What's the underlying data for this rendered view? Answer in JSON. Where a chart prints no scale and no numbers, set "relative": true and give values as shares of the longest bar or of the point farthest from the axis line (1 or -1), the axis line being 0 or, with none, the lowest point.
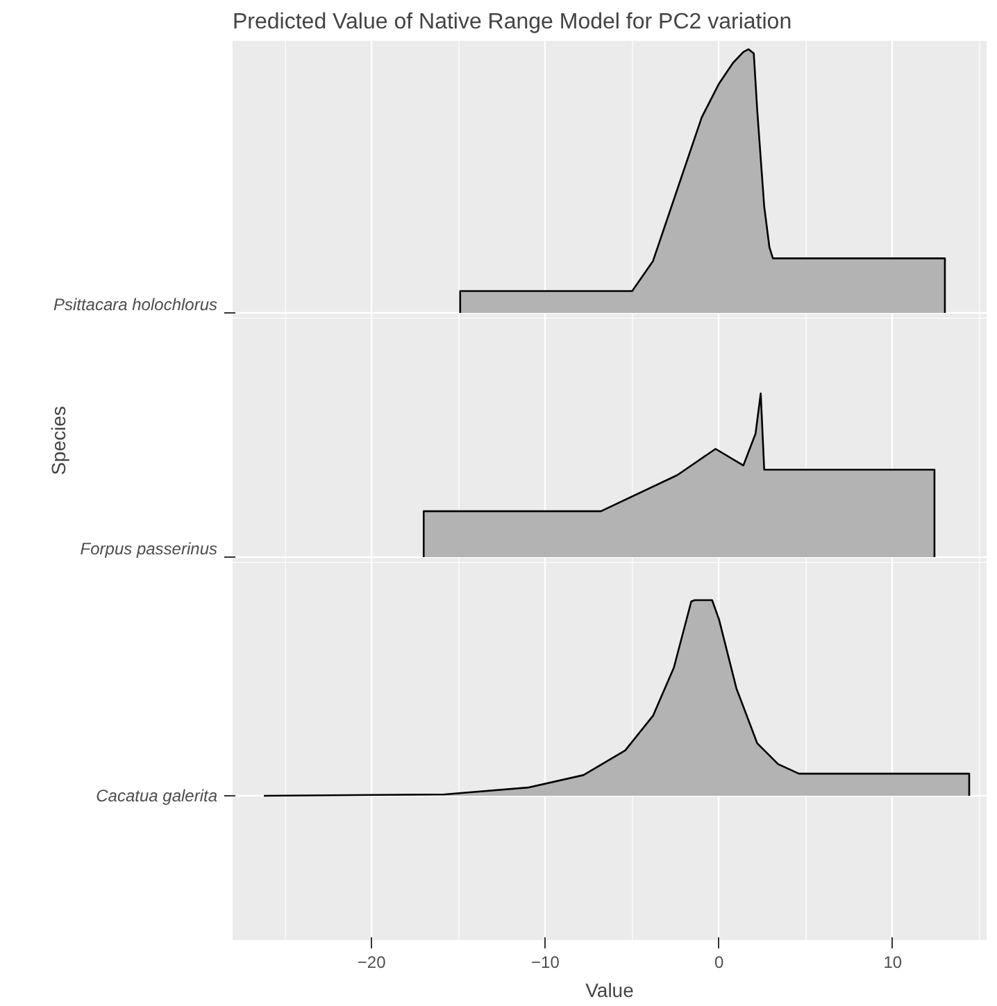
{
  "chart_data": [
    {
      "type": "area",
      "title": "Predicted Value of Native Range Model for PC2 variation",
      "relative": true,
      "grid": true,
      "tick_labels": "y",
      "xlim": [
        -28.0,
        15.4
      ],
      "xticks": [
        -20,
        -10,
        0,
        10
      ],
      "series": [
        {
          "name": "Psittacara holochlorus",
          "color": "#b3b3b3",
          "x": [
            -14.9,
            -5.0,
            -3.8,
            -2.2,
            -1.0,
            0,
            0.8,
            1.4,
            1.7,
            2.0,
            2.2,
            2.6,
            2.9,
            3.1,
            13.0
          ],
          "values": [
            0.083,
            0.083,
            0.197,
            0.508,
            0.741,
            0.87,
            0.948,
            0.99,
            1.0,
            0.984,
            0.767,
            0.404,
            0.249,
            0.207,
            0.207
          ]
        }
      ]
    },
    {
      "type": "area",
      "ylabel": "Species",
      "relative": true,
      "grid": true,
      "tick_labels": "y",
      "xlim": [
        -28.0,
        15.4
      ],
      "xticks": [
        -20,
        -10,
        0,
        10
      ],
      "series": [
        {
          "name": "Forpus passerinus",
          "color": "#b3b3b3",
          "x": [
            -17.0,
            -6.8,
            -2.4,
            -0.2,
            1.4,
            2.1,
            2.4,
            2.6,
            12.4
          ],
          "values": [
            0.28,
            0.28,
            0.501,
            0.661,
            0.56,
            0.754,
            1.0,
            0.534,
            0.534
          ]
        }
      ]
    },
    {
      "type": "area",
      "xlabel": "Value",
      "relative": true,
      "grid": true,
      "xlim": [
        -28.0,
        15.4
      ],
      "xticks": [
        -20,
        -10,
        0,
        10
      ],
      "series": [
        {
          "name": "Cacatua galerita",
          "color": "#b3b3b3",
          "x": [
            -26.2,
            -15.8,
            -11,
            -7.8,
            -5.4,
            -3.8,
            -2.6,
            -1.6,
            -1.4,
            -0.4,
            0,
            1.0,
            2.2,
            3.4,
            4.6,
            14.4
          ],
          "values": [
            0,
            0.007,
            0.042,
            0.106,
            0.232,
            0.409,
            0.655,
            0.993,
            1.0,
            1.0,
            0.901,
            0.549,
            0.268,
            0.162,
            0.113,
            0.113
          ]
        }
      ]
    }
  ]
}
